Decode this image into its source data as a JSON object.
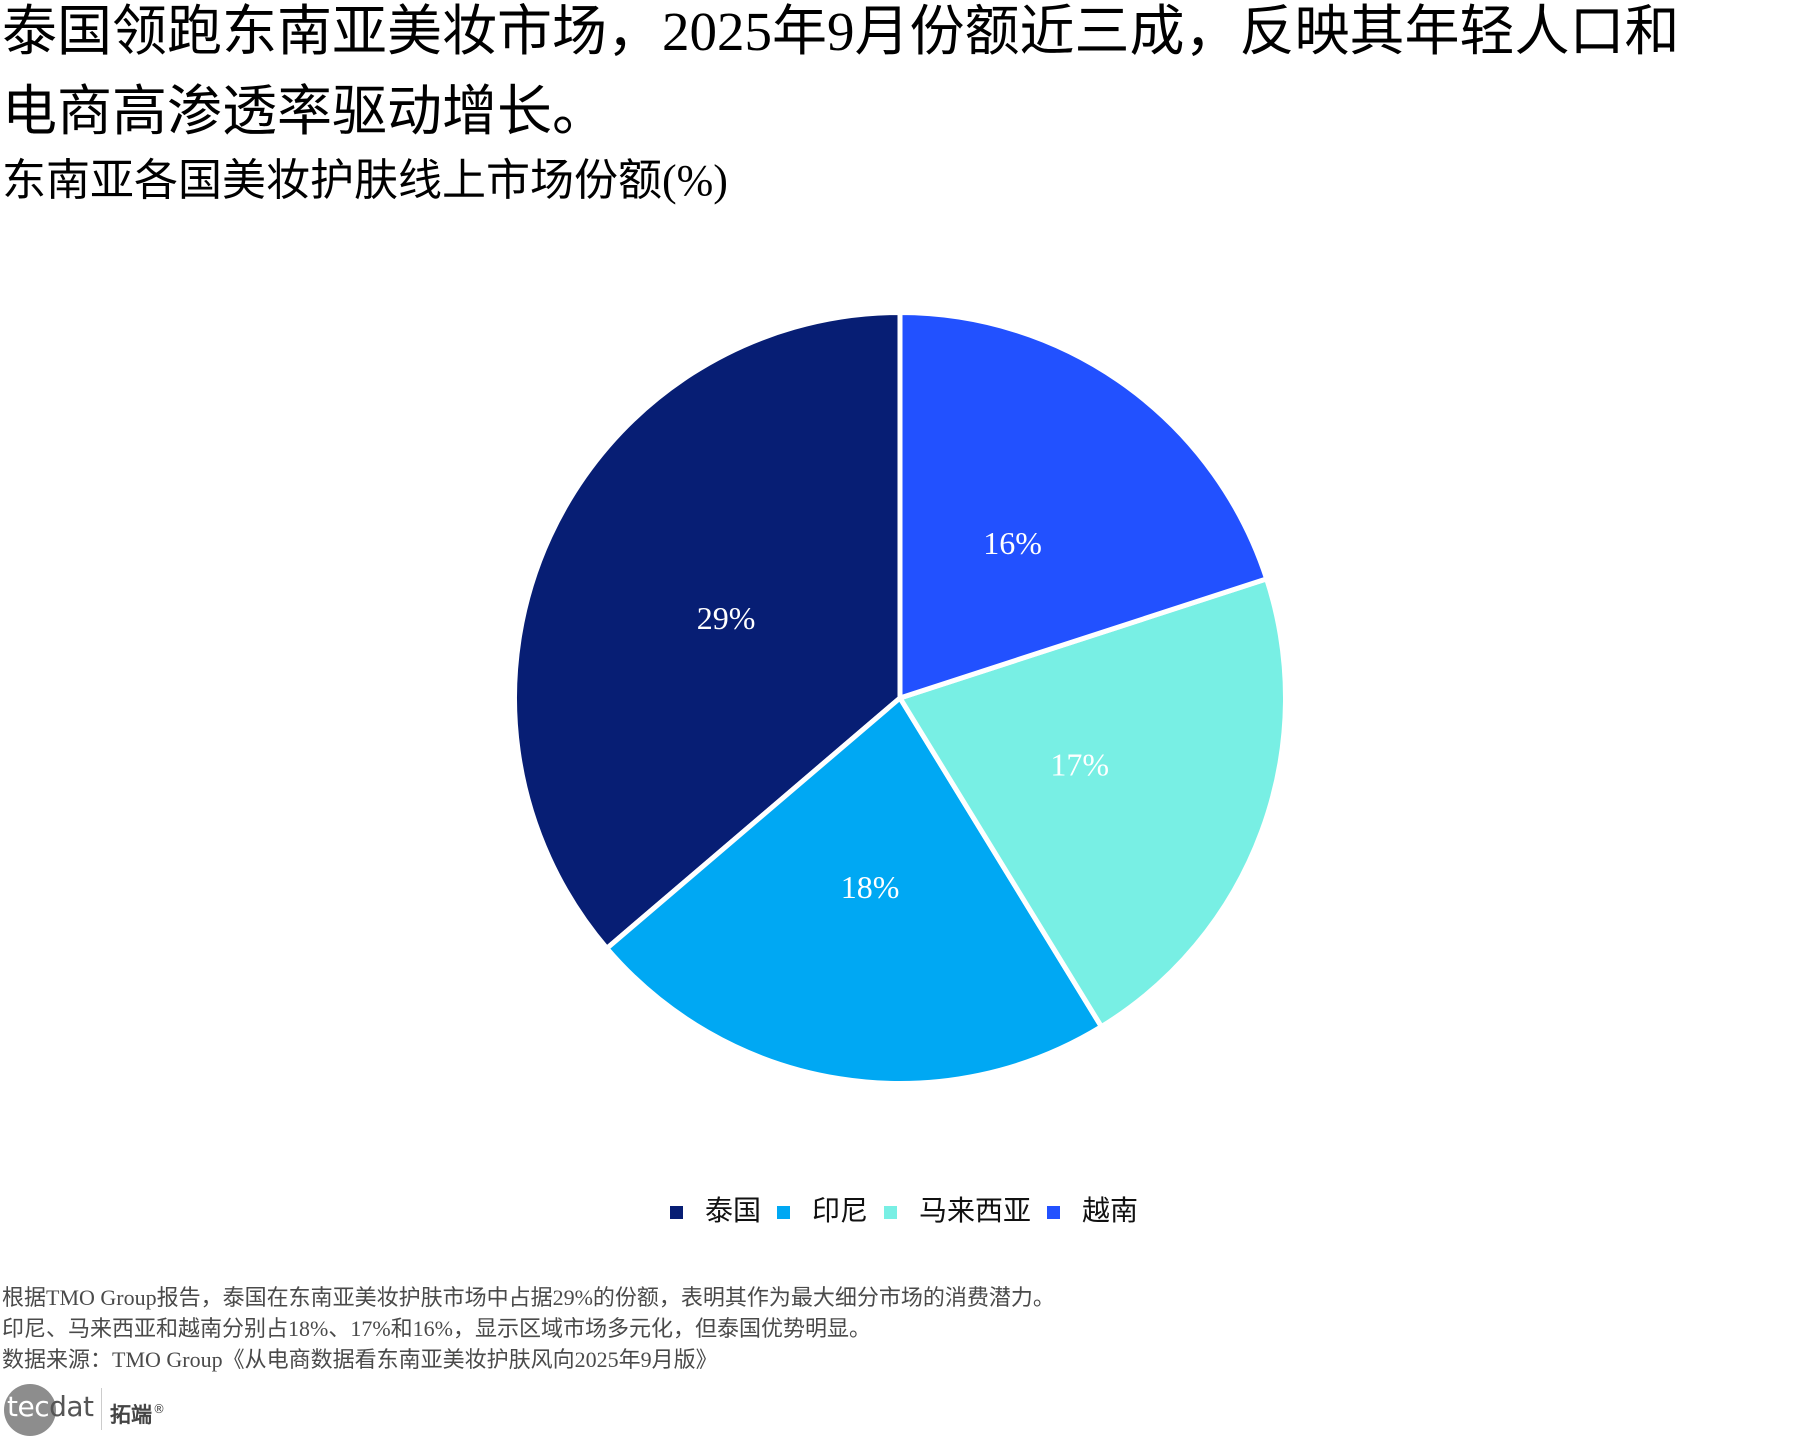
{
  "title": "泰国领跑东南亚美妆市场，2025年9月份额近三成，反映其年轻人口和电商高渗透率驱动增长。",
  "subtitle": "东南亚各国美妆护肤线上市场份额(%)",
  "chart_data": {
    "type": "pie",
    "title": "东南亚各国美妆护肤线上市场份额(%)",
    "categories": [
      "泰国",
      "印尼",
      "马来西亚",
      "越南"
    ],
    "values": [
      29,
      18,
      17,
      16
    ],
    "labels": [
      "29%",
      "18%",
      "17%",
      "16%"
    ],
    "colors": [
      "#071E74",
      "#00A8F3",
      "#78EFE4",
      "#2251FF"
    ],
    "xlabel": "",
    "ylabel": "",
    "start_angle": 90,
    "counterclock": true,
    "label_distance": 0.5,
    "wedge_edge_color": "#FFFFFF",
    "legend_position": "bottom-center",
    "grid": false
  },
  "footer": {
    "notes": [
      "根据TMO Group报告，泰国在东南亚美妆护肤市场中占据29%的份额，表明其作为最大细分市场的消费潜力。",
      "印尼、马来西亚和越南分别占18%、17%和16%，显示区域市场多元化，但泰国优势明显。"
    ],
    "source": "数据来源：TMO Group《从电商数据看东南亚美妆护肤风向2025年9月版》"
  },
  "logo": {
    "mark_light": "tec",
    "mark_dark": "dat",
    "cn_name": "拓端",
    "registered": "®"
  }
}
